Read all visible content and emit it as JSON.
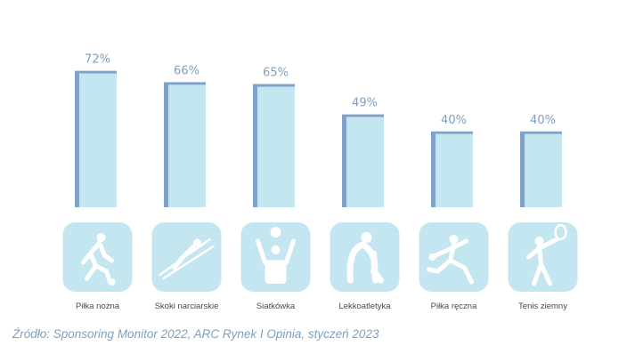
{
  "chart_data": {
    "type": "bar",
    "categories": [
      "Piłka nożna",
      "Skoki narciarskie",
      "Siatkówka",
      "Lekkoatletyka",
      "Piłka ręczna",
      "Tenis ziemny"
    ],
    "values": [
      72,
      66,
      65,
      49,
      40,
      40
    ],
    "value_labels": [
      "72%",
      "66%",
      "65%",
      "49%",
      "40%",
      "40%"
    ],
    "icons": [
      "football-player-icon",
      "ski-jumper-icon",
      "volleyball-player-icon",
      "sprinter-start-icon",
      "handball-player-icon",
      "tennis-player-icon"
    ],
    "ylim": [
      0,
      100
    ],
    "grid": false,
    "colors": {
      "bar_face": "#c4e6f0",
      "bar_edge": "#7fa2c6",
      "icon_tile": "#c4e6f0",
      "value_label": "#7f9fc0",
      "category_label": "#4a4a4a"
    }
  },
  "source": "Źródło: Sponsoring Monitor 2022, ARC Rynek I Opinia, styczeń 2023"
}
